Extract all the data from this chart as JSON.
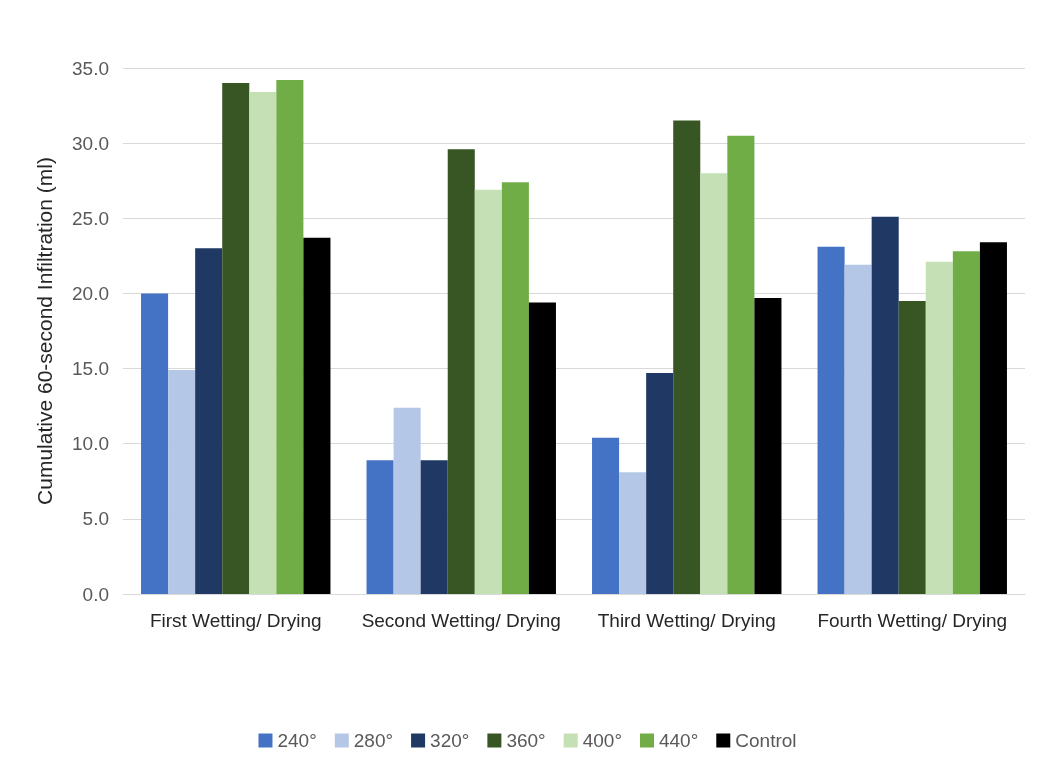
{
  "chart_data": {
    "type": "bar",
    "ylabel": "Cumulative 60-second Infiltration (ml)",
    "categories": [
      "First Wetting/ Drying",
      "Second Wetting/ Drying",
      "Third Wetting/ Drying",
      "Fourth Wetting/ Drying"
    ],
    "series": [
      {
        "name": "240°",
        "color": "#4472c4",
        "values": [
          20.0,
          8.9,
          10.4,
          23.1
        ]
      },
      {
        "name": "280°",
        "color": "#b4c7e7",
        "values": [
          14.9,
          12.4,
          8.1,
          21.9
        ]
      },
      {
        "name": "320°",
        "color": "#203864",
        "values": [
          23.0,
          8.9,
          14.7,
          25.1
        ]
      },
      {
        "name": "360°",
        "color": "#375623",
        "values": [
          34.0,
          29.6,
          31.5,
          19.5
        ]
      },
      {
        "name": "400°",
        "color": "#c5e0b4",
        "values": [
          33.4,
          26.9,
          28.0,
          22.1
        ]
      },
      {
        "name": "440°",
        "color": "#70ad47",
        "values": [
          34.2,
          27.4,
          30.5,
          22.8
        ]
      },
      {
        "name": "Control",
        "color": "#000000",
        "values": [
          23.7,
          19.4,
          19.7,
          23.4
        ]
      }
    ],
    "ylim": [
      0,
      35
    ],
    "yticks": [
      {
        "value": 0,
        "label": "0.0"
      },
      {
        "value": 5,
        "label": "5.0"
      },
      {
        "value": 10,
        "label": "10.0"
      },
      {
        "value": 15,
        "label": "15.0"
      },
      {
        "value": 20,
        "label": "20.0"
      },
      {
        "value": 25,
        "label": "25.0"
      },
      {
        "value": 30,
        "label": "30.0"
      },
      {
        "value": 35,
        "label": "35.0"
      }
    ],
    "grid": "y",
    "legend": "bottom"
  }
}
